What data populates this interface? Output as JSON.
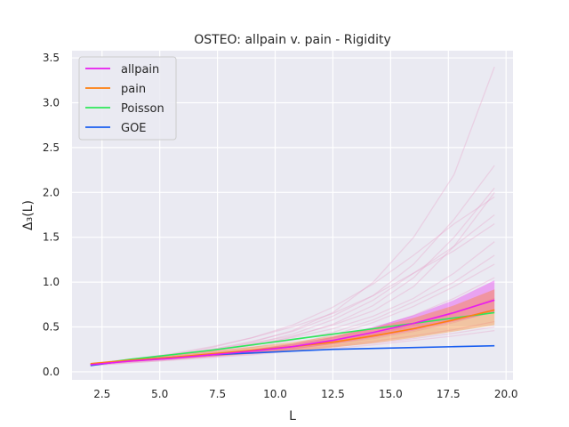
{
  "chart_data": {
    "type": "line",
    "title": "OSTEO: allpain v. pain - Rigidity",
    "xlabel": "L",
    "ylabel": "Δ₃(L)",
    "xlim": [
      1.2,
      20.3
    ],
    "ylim": [
      -0.09,
      3.58
    ],
    "xticks": [
      "2.5",
      "5.0",
      "7.5",
      "10.0",
      "12.5",
      "15.0",
      "17.5",
      "20.0"
    ],
    "yticks": [
      "0.0",
      "0.5",
      "1.0",
      "1.5",
      "2.0",
      "2.5",
      "3.0",
      "3.5"
    ],
    "grid": true,
    "legend_position": "top-left",
    "x": [
      2.0,
      3.75,
      5.5,
      7.25,
      9.0,
      10.75,
      12.5,
      14.25,
      16.0,
      17.75,
      19.5
    ],
    "series": [
      {
        "name": "allpain",
        "color": "#e81cf0",
        "values": [
          0.08,
          0.12,
          0.15,
          0.19,
          0.23,
          0.28,
          0.35,
          0.44,
          0.54,
          0.66,
          0.8
        ],
        "band_lower": [
          0.07,
          0.11,
          0.14,
          0.17,
          0.21,
          0.25,
          0.31,
          0.38,
          0.46,
          0.56,
          0.66
        ],
        "band_upper": [
          0.09,
          0.13,
          0.16,
          0.21,
          0.25,
          0.31,
          0.39,
          0.5,
          0.63,
          0.8,
          1.02
        ]
      },
      {
        "name": "pain",
        "color": "#ff7f0e",
        "values": [
          0.09,
          0.13,
          0.16,
          0.2,
          0.24,
          0.28,
          0.33,
          0.4,
          0.48,
          0.58,
          0.69
        ],
        "band_lower": [
          0.08,
          0.11,
          0.14,
          0.17,
          0.2,
          0.23,
          0.27,
          0.32,
          0.38,
          0.45,
          0.52
        ],
        "band_upper": [
          0.1,
          0.14,
          0.18,
          0.23,
          0.28,
          0.33,
          0.4,
          0.49,
          0.6,
          0.74,
          0.92
        ]
      },
      {
        "name": "Poisson",
        "color": "#2ee85a",
        "values": [
          0.08,
          0.14,
          0.19,
          0.24,
          0.3,
          0.36,
          0.42,
          0.48,
          0.54,
          0.6,
          0.66
        ]
      },
      {
        "name": "GOE",
        "color": "#1a5ff0",
        "values": [
          0.07,
          0.13,
          0.16,
          0.19,
          0.21,
          0.23,
          0.25,
          0.26,
          0.27,
          0.28,
          0.29
        ]
      }
    ],
    "individual_traces": [
      [
        0.08,
        0.13,
        0.18,
        0.25,
        0.34,
        0.45,
        0.62,
        0.85,
        1.2,
        1.7,
        2.3
      ],
      [
        0.08,
        0.12,
        0.17,
        0.24,
        0.33,
        0.46,
        0.66,
        1.0,
        1.5,
        2.2,
        3.4
      ],
      [
        0.09,
        0.14,
        0.19,
        0.25,
        0.32,
        0.4,
        0.52,
        0.68,
        0.95,
        1.4,
        2.0
      ],
      [
        0.08,
        0.12,
        0.16,
        0.22,
        0.29,
        0.39,
        0.53,
        0.74,
        1.05,
        1.5,
        2.05
      ],
      [
        0.09,
        0.13,
        0.18,
        0.23,
        0.3,
        0.38,
        0.48,
        0.62,
        0.82,
        1.1,
        1.45
      ],
      [
        0.08,
        0.12,
        0.16,
        0.21,
        0.27,
        0.35,
        0.44,
        0.58,
        0.78,
        1.0,
        1.3
      ],
      [
        0.08,
        0.11,
        0.15,
        0.19,
        0.24,
        0.3,
        0.38,
        0.48,
        0.63,
        0.82,
        1.05
      ],
      [
        0.08,
        0.12,
        0.15,
        0.19,
        0.23,
        0.28,
        0.34,
        0.42,
        0.52,
        0.65,
        0.82
      ],
      [
        0.08,
        0.11,
        0.14,
        0.18,
        0.22,
        0.26,
        0.31,
        0.37,
        0.45,
        0.55,
        0.68
      ],
      [
        0.07,
        0.11,
        0.14,
        0.17,
        0.21,
        0.25,
        0.29,
        0.34,
        0.4,
        0.47,
        0.56
      ],
      [
        0.07,
        0.1,
        0.13,
        0.17,
        0.2,
        0.24,
        0.28,
        0.32,
        0.37,
        0.43,
        0.5
      ],
      [
        0.07,
        0.1,
        0.13,
        0.16,
        0.19,
        0.23,
        0.26,
        0.3,
        0.35,
        0.4,
        0.46
      ],
      [
        0.08,
        0.13,
        0.19,
        0.27,
        0.38,
        0.52,
        0.72,
        0.98,
        1.3,
        1.65,
        1.95
      ],
      [
        0.08,
        0.12,
        0.17,
        0.23,
        0.31,
        0.42,
        0.58,
        0.8,
        1.1,
        1.35,
        1.65
      ],
      [
        0.09,
        0.14,
        0.2,
        0.28,
        0.38,
        0.5,
        0.65,
        0.85,
        1.1,
        1.4,
        1.75
      ],
      [
        0.08,
        0.12,
        0.15,
        0.19,
        0.24,
        0.31,
        0.41,
        0.55,
        0.73,
        0.95,
        1.2
      ]
    ]
  }
}
